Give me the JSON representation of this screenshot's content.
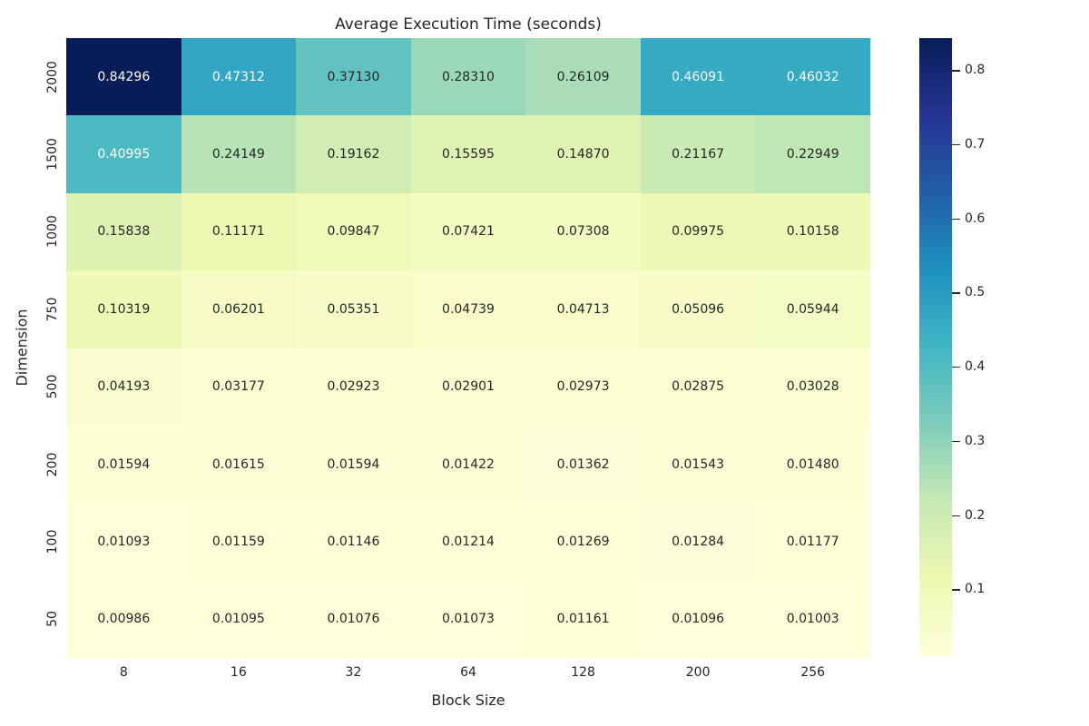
{
  "chart_data": {
    "type": "heatmap",
    "title": "Average Execution Time (seconds)",
    "xlabel": "Block Size",
    "ylabel": "Dimension",
    "x_categories": [
      "8",
      "16",
      "32",
      "64",
      "128",
      "200",
      "256"
    ],
    "y_categories": [
      "2000",
      "1500",
      "1000",
      "750",
      "500",
      "200",
      "100",
      "50"
    ],
    "values": [
      [
        0.84296,
        0.47312,
        0.3713,
        0.2831,
        0.26109,
        0.46091,
        0.46032
      ],
      [
        0.40995,
        0.24149,
        0.19162,
        0.15595,
        0.1487,
        0.21167,
        0.22949
      ],
      [
        0.15838,
        0.11171,
        0.09847,
        0.07421,
        0.07308,
        0.09975,
        0.10158
      ],
      [
        0.10319,
        0.06201,
        0.05351,
        0.04739,
        0.04713,
        0.05096,
        0.05944
      ],
      [
        0.04193,
        0.03177,
        0.02923,
        0.02901,
        0.02973,
        0.02875,
        0.03028
      ],
      [
        0.01594,
        0.01615,
        0.01594,
        0.01422,
        0.01362,
        0.01543,
        0.0148
      ],
      [
        0.01093,
        0.01159,
        0.01146,
        0.01214,
        0.01269,
        0.01284,
        0.01177
      ],
      [
        0.00986,
        0.01095,
        0.01076,
        0.01073,
        0.01161,
        0.01096,
        0.01003
      ]
    ],
    "value_format_decimals": 5,
    "colormap": {
      "name": "YlGnBu",
      "stops": [
        {
          "t": 0.0,
          "color": "#ffffd9"
        },
        {
          "t": 0.125,
          "color": "#edf8b1"
        },
        {
          "t": 0.25,
          "color": "#c7e9b4"
        },
        {
          "t": 0.375,
          "color": "#7fcdbb"
        },
        {
          "t": 0.5,
          "color": "#41b6c4"
        },
        {
          "t": 0.625,
          "color": "#1d91c0"
        },
        {
          "t": 0.75,
          "color": "#225ea8"
        },
        {
          "t": 0.875,
          "color": "#253494"
        },
        {
          "t": 1.0,
          "color": "#081d58"
        }
      ]
    },
    "colorbar": {
      "ticks": [
        "0.1",
        "0.2",
        "0.3",
        "0.4",
        "0.5",
        "0.6",
        "0.7",
        "0.8"
      ],
      "position": "right"
    },
    "annotation_text_colors": {
      "on_dark": "#ffffff",
      "on_light": "#262626"
    },
    "background": "#ffffff",
    "grid": false,
    "legend": false
  }
}
